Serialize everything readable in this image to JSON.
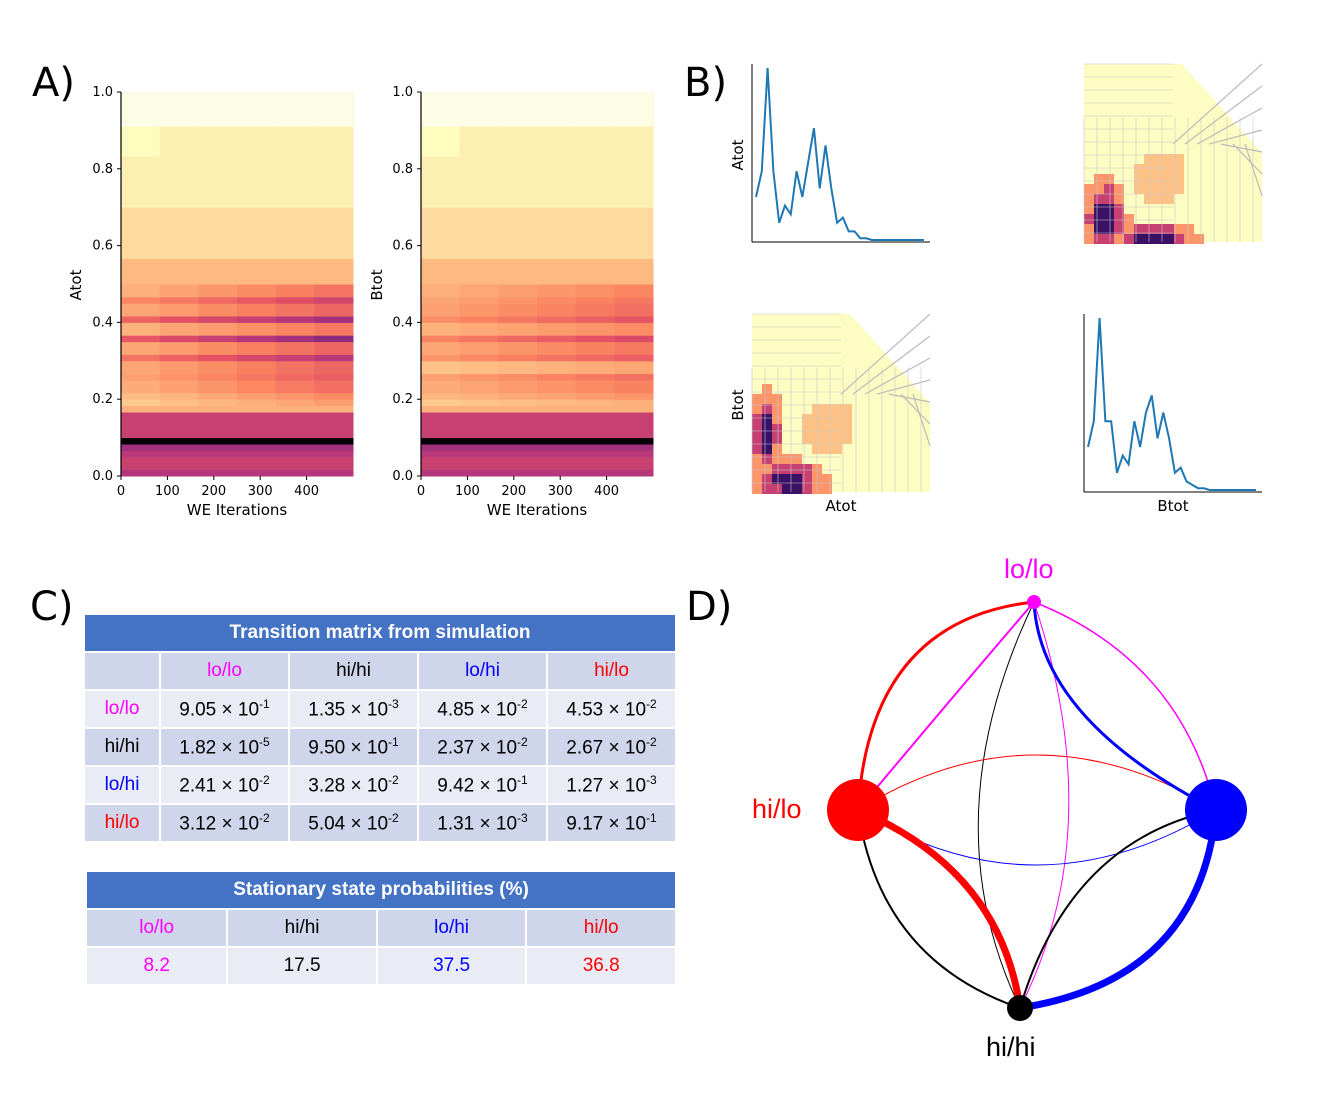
{
  "panels": {
    "a": "A)",
    "b": "B)",
    "c": "C)",
    "d": "D)"
  },
  "chart_data": [
    {
      "type": "heatmap",
      "panel": "A-left",
      "xlabel": "WE Iterations",
      "ylabel": "Atot",
      "xticks": [
        "0",
        "100",
        "200",
        "300",
        "400"
      ],
      "yticks": [
        "0.0",
        "0.2",
        "0.4",
        "0.6",
        "0.8",
        "1.0"
      ],
      "xlim": [
        0,
        500
      ],
      "ylim": [
        0,
        1.0
      ]
    },
    {
      "type": "heatmap",
      "panel": "A-right",
      "xlabel": "WE Iterations",
      "ylabel": "Btot",
      "xticks": [
        "0",
        "100",
        "200",
        "300",
        "400"
      ],
      "yticks": [
        "0.0",
        "0.2",
        "0.4",
        "0.6",
        "0.8",
        "1.0"
      ],
      "xlim": [
        0,
        500
      ],
      "ylim": [
        0,
        1.0
      ]
    },
    {
      "type": "line",
      "panel": "B-diag-top",
      "ylabel": "Atot",
      "values": [
        0.25,
        0.4,
        1.0,
        0.4,
        0.1,
        0.2,
        0.15,
        0.4,
        0.25,
        0.45,
        0.65,
        0.3,
        0.55,
        0.3,
        0.1,
        0.13,
        0.05,
        0.05,
        0.01,
        0.01,
        0,
        0,
        0,
        0,
        0,
        0,
        0,
        0,
        0,
        0
      ]
    },
    {
      "type": "heatmap",
      "panel": "B-offdiag-top"
    },
    {
      "type": "heatmap",
      "panel": "B-offdiag-bottom",
      "xlabel": "Atot",
      "ylabel": "Btot"
    },
    {
      "type": "line",
      "panel": "B-diag-bottom",
      "xlabel": "Btot",
      "values": [
        0.25,
        0.4,
        1.0,
        0.4,
        0.4,
        0.1,
        0.2,
        0.15,
        0.4,
        0.25,
        0.45,
        0.55,
        0.3,
        0.45,
        0.3,
        0.1,
        0.13,
        0.05,
        0.03,
        0.01,
        0.01,
        0,
        0,
        0,
        0,
        0,
        0,
        0,
        0,
        0
      ]
    }
  ],
  "transition_table": {
    "title": "Transition matrix from simulation",
    "headers": [
      "",
      "lo/lo",
      "hi/hi",
      "lo/hi",
      "hi/lo"
    ],
    "rows": [
      {
        "label": "lo/lo",
        "cells": [
          [
            "9.05 × 10",
            "-1"
          ],
          [
            "1.35 × 10",
            "-3"
          ],
          [
            "4.85 × 10",
            "-2"
          ],
          [
            "4.53 × 10",
            "-2"
          ]
        ]
      },
      {
        "label": "hi/hi",
        "cells": [
          [
            "1.82 × 10",
            "-5"
          ],
          [
            "9.50 × 10",
            "-1"
          ],
          [
            "2.37 × 10",
            "-2"
          ],
          [
            "2.67 × 10",
            "-2"
          ]
        ]
      },
      {
        "label": "lo/hi",
        "cells": [
          [
            "2.41 × 10",
            "-2"
          ],
          [
            "3.28 × 10",
            "-2"
          ],
          [
            "9.42 × 10",
            "-1"
          ],
          [
            "1.27 × 10",
            "-3"
          ]
        ]
      },
      {
        "label": "hi/lo",
        "cells": [
          [
            "3.12 × 10",
            "-2"
          ],
          [
            "5.04 × 10",
            "-2"
          ],
          [
            "1.31 × 10",
            "-3"
          ],
          [
            "9.17 × 10",
            "-1"
          ]
        ]
      }
    ]
  },
  "stationary_table": {
    "title": "Stationary state probabilities (%)",
    "headers": [
      "lo/lo",
      "hi/hi",
      "lo/hi",
      "hi/lo"
    ],
    "values": [
      "8.2",
      "17.5",
      "37.5",
      "36.8"
    ]
  },
  "network": {
    "nodes": [
      {
        "name": "lo/lo",
        "color": "#ff00ff",
        "probability": 8.2
      },
      {
        "name": "hi/hi",
        "color": "#000000",
        "probability": 17.5
      },
      {
        "name": "lo/hi",
        "color": "#0000ff",
        "probability": 37.5
      },
      {
        "name": "hi/lo",
        "color": "#ff0000",
        "probability": 36.8
      }
    ]
  },
  "colors": {
    "pink": "#ff00ff",
    "blue": "#0000ff",
    "red": "#ff0000",
    "black": "#000000",
    "header": "#4472c4"
  }
}
